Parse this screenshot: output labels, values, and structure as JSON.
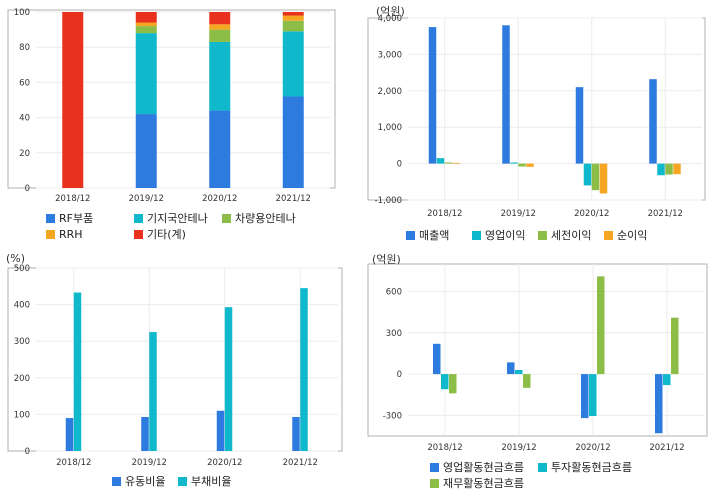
{
  "colors": {
    "blue": "#2e7be0",
    "teal": "#10b8cc",
    "green": "#8cbd46",
    "orange": "#f6a623",
    "red": "#e8321e",
    "axis": "#b0b0b0",
    "grid": "#ececec"
  },
  "chart_data": [
    {
      "type": "bar",
      "stacked": true,
      "unit": "",
      "categories": [
        "2018/12",
        "2019/12",
        "2020/12",
        "2021/12"
      ],
      "ylim": [
        0,
        100
      ],
      "yticks": [
        "0",
        "20",
        "40",
        "60",
        "80",
        "100"
      ],
      "grid": true,
      "series": [
        {
          "name": "RF부품",
          "color": "#2e7be0",
          "values": [
            0,
            42,
            44,
            52
          ]
        },
        {
          "name": "기지국안테나",
          "color": "#10b8cc",
          "values": [
            0,
            46,
            39,
            37
          ]
        },
        {
          "name": "차량용안테나",
          "color": "#8cbd46",
          "values": [
            0,
            4,
            7,
            6
          ]
        },
        {
          "name": "RRH",
          "color": "#f6a623",
          "values": [
            0,
            2,
            3,
            3
          ]
        },
        {
          "name": "기타(계)",
          "color": "#e8321e",
          "values": [
            100,
            6,
            7,
            2
          ]
        }
      ]
    },
    {
      "type": "bar",
      "stacked": false,
      "unit": "(억원)",
      "categories": [
        "2018/12",
        "2019/12",
        "2020/12",
        "2021/12"
      ],
      "ylim": [
        -1000,
        4000
      ],
      "yticks": [
        "-1,000",
        "0",
        "1,000",
        "2,000",
        "3,000",
        "4,000"
      ],
      "grid": true,
      "series": [
        {
          "name": "매출액",
          "color": "#2e7be0",
          "values": [
            3750,
            3800,
            2100,
            2320
          ]
        },
        {
          "name": "영업이익",
          "color": "#10b8cc",
          "values": [
            150,
            30,
            -600,
            -320
          ]
        },
        {
          "name": "세전이익",
          "color": "#8cbd46",
          "values": [
            30,
            -80,
            -730,
            -300
          ]
        },
        {
          "name": "순이익",
          "color": "#f6a623",
          "values": [
            20,
            -90,
            -820,
            -290
          ]
        }
      ]
    },
    {
      "type": "bar",
      "stacked": false,
      "unit": "(%)",
      "categories": [
        "2018/12",
        "2019/12",
        "2020/12",
        "2021/12"
      ],
      "ylim": [
        0,
        500
      ],
      "yticks": [
        "0",
        "100",
        "200",
        "300",
        "400",
        "500"
      ],
      "grid": true,
      "series": [
        {
          "name": "유동비율",
          "color": "#2e7be0",
          "values": [
            90,
            93,
            110,
            93
          ]
        },
        {
          "name": "부채비율",
          "color": "#10b8cc",
          "values": [
            433,
            325,
            393,
            445
          ]
        }
      ]
    },
    {
      "type": "bar",
      "stacked": false,
      "unit": "(억원)",
      "categories": [
        "2018/12",
        "2019/12",
        "2020/12",
        "2021/12"
      ],
      "ylim": [
        -450,
        800
      ],
      "yticks": [
        "-300",
        "0",
        "300",
        "600"
      ],
      "ytick_values": [
        -300,
        0,
        300,
        600
      ],
      "grid": true,
      "series": [
        {
          "name": "영업활동현금흐름",
          "color": "#2e7be0",
          "values": [
            220,
            85,
            -320,
            -430
          ]
        },
        {
          "name": "투자활동현금흐름",
          "color": "#10b8cc",
          "values": [
            -110,
            30,
            -305,
            -80
          ]
        },
        {
          "name": "재무활동현금흐름",
          "color": "#8cbd46",
          "values": [
            -140,
            -100,
            710,
            410
          ]
        }
      ]
    }
  ]
}
